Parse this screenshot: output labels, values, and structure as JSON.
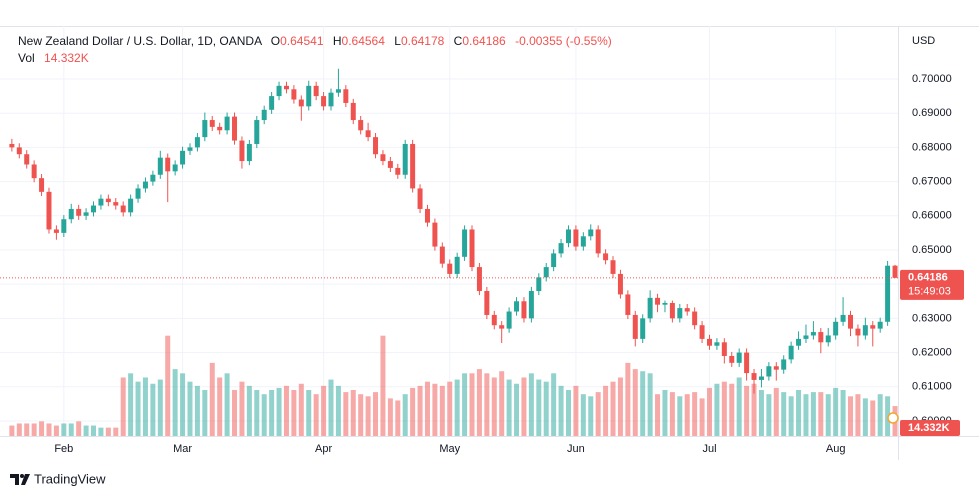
{
  "chart_data": {
    "type": "candlestick",
    "title": "New Zealand Dollar / U.S. Dollar, 1D, OANDA",
    "currency": "USD",
    "ohlc_letters": [
      "O",
      "H",
      "L",
      "C"
    ],
    "change": "-0.00355 (-0.55%)",
    "countdown": "15:49:03",
    "up_color": "#26a69a",
    "down_color": "#ef5350",
    "grid": true,
    "ylim": [
      0.5956,
      0.7155
    ],
    "yticks": [
      {
        "value": 0.6,
        "label": "0.60000"
      },
      {
        "value": 0.61,
        "label": "0.61000"
      },
      {
        "value": 0.62,
        "label": "0.62000"
      },
      {
        "value": 0.63,
        "label": "0.63000"
      },
      {
        "value": 0.64,
        "label": "0.64000"
      },
      {
        "value": 0.65,
        "label": "0.65000"
      },
      {
        "value": 0.66,
        "label": "0.66000"
      },
      {
        "value": 0.67,
        "label": "0.67000"
      },
      {
        "value": 0.68,
        "label": "0.68000"
      },
      {
        "value": 0.69,
        "label": "0.69000"
      },
      {
        "value": 0.7,
        "label": "0.70000"
      }
    ],
    "xlim": [
      -1.6,
      119.4
    ],
    "xticks": [
      {
        "value": 7,
        "label": "Feb"
      },
      {
        "value": 23,
        "label": "Mar"
      },
      {
        "value": 42,
        "label": "Apr"
      },
      {
        "value": 59,
        "label": "May"
      },
      {
        "value": 76,
        "label": "Jun"
      },
      {
        "value": 94,
        "label": "Jul"
      },
      {
        "value": 111,
        "label": "Aug"
      }
    ],
    "ohlc": [
      [
        0.681,
        0.6825,
        0.6788,
        0.68
      ],
      [
        0.68,
        0.6812,
        0.6768,
        0.678
      ],
      [
        0.678,
        0.6792,
        0.6738,
        0.675
      ],
      [
        0.675,
        0.6762,
        0.6698,
        0.671
      ],
      [
        0.671,
        0.6722,
        0.6658,
        0.667
      ],
      [
        0.667,
        0.6682,
        0.6548,
        0.656
      ],
      [
        0.656,
        0.6572,
        0.653,
        0.655
      ],
      [
        0.655,
        0.6602,
        0.6538,
        0.659
      ],
      [
        0.659,
        0.6635,
        0.6578,
        0.662
      ],
      [
        0.662,
        0.6632,
        0.6588,
        0.66
      ],
      [
        0.66,
        0.6622,
        0.6588,
        0.661
      ],
      [
        0.661,
        0.6642,
        0.6598,
        0.663
      ],
      [
        0.663,
        0.6662,
        0.6618,
        0.665
      ],
      [
        0.665,
        0.6662,
        0.6628,
        0.664
      ],
      [
        0.664,
        0.6652,
        0.6618,
        0.663
      ],
      [
        0.663,
        0.6642,
        0.6598,
        0.661
      ],
      [
        0.661,
        0.6662,
        0.6598,
        0.665
      ],
      [
        0.665,
        0.6692,
        0.6638,
        0.668
      ],
      [
        0.668,
        0.6712,
        0.6668,
        0.67
      ],
      [
        0.67,
        0.6732,
        0.6688,
        0.672
      ],
      [
        0.672,
        0.679,
        0.6708,
        0.677
      ],
      [
        0.677,
        0.6782,
        0.664,
        0.673
      ],
      [
        0.673,
        0.6762,
        0.6718,
        0.675
      ],
      [
        0.675,
        0.6802,
        0.6738,
        0.679
      ],
      [
        0.679,
        0.6812,
        0.6778,
        0.68
      ],
      [
        0.68,
        0.6842,
        0.6788,
        0.683
      ],
      [
        0.683,
        0.6902,
        0.6818,
        0.688
      ],
      [
        0.688,
        0.6892,
        0.6848,
        0.686
      ],
      [
        0.686,
        0.6872,
        0.6838,
        0.685
      ],
      [
        0.685,
        0.6902,
        0.6838,
        0.689
      ],
      [
        0.689,
        0.6902,
        0.6808,
        0.682
      ],
      [
        0.682,
        0.6832,
        0.6738,
        0.676
      ],
      [
        0.676,
        0.6822,
        0.6748,
        0.681
      ],
      [
        0.681,
        0.6892,
        0.6798,
        0.688
      ],
      [
        0.688,
        0.6922,
        0.6868,
        0.691
      ],
      [
        0.691,
        0.6962,
        0.6898,
        0.695
      ],
      [
        0.695,
        0.6992,
        0.6938,
        0.698
      ],
      [
        0.698,
        0.6992,
        0.6958,
        0.697
      ],
      [
        0.697,
        0.6982,
        0.6928,
        0.694
      ],
      [
        0.694,
        0.6952,
        0.6878,
        0.692
      ],
      [
        0.692,
        0.6995,
        0.6908,
        0.698
      ],
      [
        0.698,
        0.6992,
        0.6938,
        0.695
      ],
      [
        0.695,
        0.6962,
        0.6908,
        0.692
      ],
      [
        0.692,
        0.6972,
        0.6908,
        0.696
      ],
      [
        0.696,
        0.703,
        0.6948,
        0.697
      ],
      [
        0.697,
        0.6982,
        0.6918,
        0.693
      ],
      [
        0.693,
        0.6942,
        0.6868,
        0.688
      ],
      [
        0.688,
        0.6892,
        0.6838,
        0.685
      ],
      [
        0.685,
        0.6872,
        0.6818,
        0.683
      ],
      [
        0.683,
        0.6842,
        0.6768,
        0.678
      ],
      [
        0.678,
        0.6792,
        0.6748,
        0.676
      ],
      [
        0.676,
        0.6772,
        0.6728,
        0.674
      ],
      [
        0.674,
        0.6752,
        0.6708,
        0.672
      ],
      [
        0.672,
        0.6822,
        0.6708,
        0.681
      ],
      [
        0.681,
        0.6822,
        0.6668,
        0.668
      ],
      [
        0.668,
        0.6692,
        0.6608,
        0.662
      ],
      [
        0.662,
        0.6632,
        0.6568,
        0.658
      ],
      [
        0.658,
        0.6592,
        0.6498,
        0.651
      ],
      [
        0.651,
        0.6522,
        0.6448,
        0.646
      ],
      [
        0.646,
        0.6472,
        0.6418,
        0.643
      ],
      [
        0.643,
        0.6492,
        0.6418,
        0.648
      ],
      [
        0.648,
        0.6572,
        0.6468,
        0.656
      ],
      [
        0.656,
        0.6572,
        0.6438,
        0.645
      ],
      [
        0.645,
        0.6462,
        0.6368,
        0.638
      ],
      [
        0.638,
        0.6392,
        0.6298,
        0.631
      ],
      [
        0.631,
        0.6322,
        0.6268,
        0.628
      ],
      [
        0.628,
        0.6292,
        0.6228,
        0.627
      ],
      [
        0.627,
        0.6332,
        0.6258,
        0.632
      ],
      [
        0.632,
        0.6362,
        0.6308,
        0.635
      ],
      [
        0.635,
        0.6362,
        0.6288,
        0.63
      ],
      [
        0.63,
        0.6392,
        0.6288,
        0.638
      ],
      [
        0.638,
        0.6432,
        0.6368,
        0.642
      ],
      [
        0.642,
        0.6462,
        0.6408,
        0.645
      ],
      [
        0.645,
        0.6502,
        0.6438,
        0.649
      ],
      [
        0.649,
        0.6532,
        0.6478,
        0.652
      ],
      [
        0.652,
        0.6572,
        0.6508,
        0.656
      ],
      [
        0.656,
        0.6572,
        0.6498,
        0.651
      ],
      [
        0.651,
        0.6552,
        0.6498,
        0.654
      ],
      [
        0.654,
        0.6575,
        0.6528,
        0.656
      ],
      [
        0.656,
        0.6572,
        0.6478,
        0.649
      ],
      [
        0.649,
        0.6502,
        0.6458,
        0.647
      ],
      [
        0.647,
        0.6482,
        0.6418,
        0.643
      ],
      [
        0.643,
        0.6442,
        0.6358,
        0.637
      ],
      [
        0.637,
        0.6382,
        0.6298,
        0.631
      ],
      [
        0.631,
        0.6322,
        0.6218,
        0.624
      ],
      [
        0.624,
        0.6312,
        0.6228,
        0.63
      ],
      [
        0.63,
        0.6382,
        0.6288,
        0.636
      ],
      [
        0.636,
        0.6372,
        0.6318,
        0.634
      ],
      [
        0.634,
        0.6352,
        0.6318,
        0.6345
      ],
      [
        0.6345,
        0.6352,
        0.6288,
        0.63
      ],
      [
        0.63,
        0.6342,
        0.6288,
        0.633
      ],
      [
        0.633,
        0.6342,
        0.6308,
        0.632
      ],
      [
        0.632,
        0.6332,
        0.6268,
        0.628
      ],
      [
        0.628,
        0.6292,
        0.6228,
        0.624
      ],
      [
        0.624,
        0.6252,
        0.6208,
        0.622
      ],
      [
        0.622,
        0.6242,
        0.6208,
        0.623
      ],
      [
        0.623,
        0.6242,
        0.6168,
        0.619
      ],
      [
        0.619,
        0.6202,
        0.6158,
        0.617
      ],
      [
        0.617,
        0.6212,
        0.6158,
        0.62
      ],
      [
        0.62,
        0.6212,
        0.6118,
        0.614
      ],
      [
        0.614,
        0.6152,
        0.608,
        0.612
      ],
      [
        0.612,
        0.6152,
        0.6098,
        0.613
      ],
      [
        0.613,
        0.6172,
        0.6118,
        0.616
      ],
      [
        0.616,
        0.6172,
        0.6118,
        0.615
      ],
      [
        0.615,
        0.6192,
        0.6138,
        0.618
      ],
      [
        0.618,
        0.6232,
        0.6168,
        0.622
      ],
      [
        0.622,
        0.6262,
        0.6208,
        0.624
      ],
      [
        0.624,
        0.6282,
        0.6228,
        0.625
      ],
      [
        0.625,
        0.6292,
        0.6238,
        0.626
      ],
      [
        0.626,
        0.6272,
        0.6198,
        0.623
      ],
      [
        0.623,
        0.6272,
        0.6218,
        0.625
      ],
      [
        0.625,
        0.6302,
        0.6238,
        0.629
      ],
      [
        0.629,
        0.6362,
        0.6278,
        0.631
      ],
      [
        0.631,
        0.6322,
        0.6248,
        0.627
      ],
      [
        0.627,
        0.6282,
        0.6218,
        0.625
      ],
      [
        0.625,
        0.6302,
        0.6238,
        0.628
      ],
      [
        0.628,
        0.6292,
        0.6218,
        0.627
      ],
      [
        0.627,
        0.6302,
        0.6258,
        0.629
      ],
      [
        0.629,
        0.6468,
        0.6278,
        0.6454
      ],
      [
        0.64541,
        0.64564,
        0.64178,
        0.64186
      ]
    ],
    "volume": {
      "name": "Vol",
      "values": [
        5,
        6,
        6,
        6,
        7,
        6,
        5,
        6,
        6,
        7,
        5,
        5,
        4,
        4,
        4,
        28,
        30,
        26,
        28,
        25,
        27,
        48,
        32,
        30,
        26,
        24,
        22,
        35,
        28,
        30,
        22,
        26,
        24,
        22,
        20,
        22,
        23,
        24,
        22,
        25,
        22,
        20,
        24,
        27,
        24,
        21,
        22,
        20,
        19,
        21,
        48,
        18,
        17,
        20,
        23,
        24,
        26,
        25,
        24,
        26,
        27,
        30,
        30,
        32,
        30,
        28,
        31,
        27,
        25,
        28,
        30,
        27,
        26,
        30,
        24,
        22,
        24,
        20,
        19,
        21,
        24,
        26,
        28,
        35,
        32,
        31,
        30,
        20,
        22,
        21,
        19,
        20,
        21,
        18,
        23,
        25,
        26,
        25,
        28,
        24,
        25,
        22,
        20,
        23,
        21,
        19,
        22,
        20,
        21,
        21,
        20,
        23,
        22,
        19,
        20,
        18,
        17,
        20,
        19,
        14.332
      ],
      "value_labels": [
        null,
        null,
        null,
        null,
        null,
        null,
        null,
        null,
        null,
        null,
        null,
        null,
        null,
        null,
        null,
        null,
        null,
        null,
        null,
        null,
        null,
        null,
        null,
        null,
        null,
        null,
        null,
        null,
        null,
        null,
        null,
        null,
        null,
        null,
        null,
        null,
        null,
        null,
        null,
        null,
        null,
        null,
        null,
        null,
        null,
        null,
        null,
        null,
        null,
        null,
        null,
        null,
        null,
        null,
        null,
        null,
        null,
        null,
        null,
        null,
        null,
        null,
        null,
        null,
        null,
        null,
        null,
        null,
        null,
        null,
        null,
        null,
        null,
        null,
        null,
        null,
        null,
        null,
        null,
        null,
        null,
        null,
        null,
        null,
        null,
        null,
        null,
        null,
        null,
        null,
        null,
        null,
        null,
        null,
        null,
        null,
        null,
        null,
        null,
        null,
        null,
        null,
        null,
        null,
        null,
        null,
        null,
        null,
        null,
        null,
        null,
        null,
        null,
        null,
        null,
        null,
        null,
        null,
        null,
        "14.332K"
      ]
    }
  },
  "footer": {
    "brand": "TradingView"
  }
}
